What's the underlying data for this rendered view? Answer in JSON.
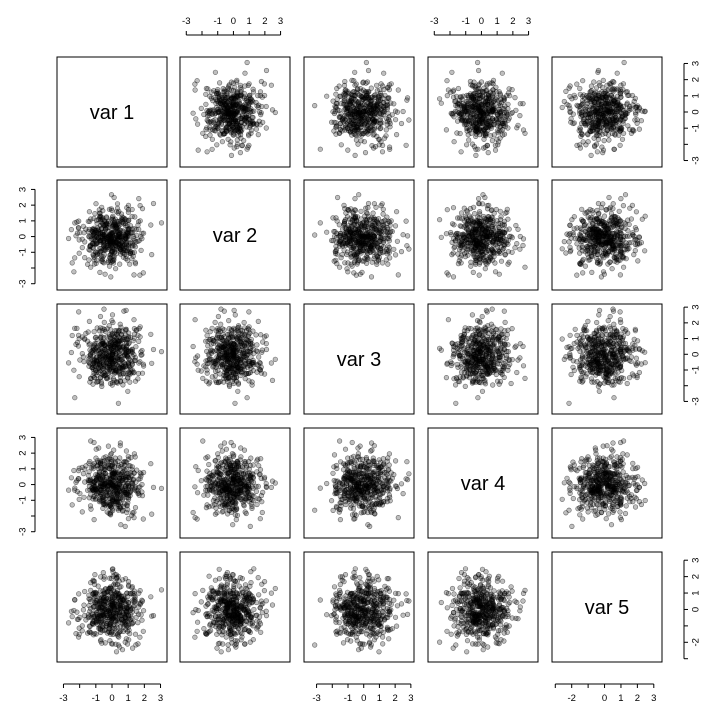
{
  "chart_data": {
    "type": "scatter",
    "title": "",
    "layout": "pairs-matrix",
    "variables": [
      "var 1",
      "var 2",
      "var 3",
      "var 4",
      "var 5"
    ],
    "distribution": "independent standard normal",
    "n_points": 500,
    "point_color": "#000000",
    "point_alpha": 0.25,
    "axes": {
      "var 1": {
        "range": [
          -3.4,
          3.4
        ],
        "ticks": [
          -3,
          -2,
          -1,
          0,
          1,
          2,
          3
        ],
        "tick_labels": [
          "-3",
          "",
          "-1",
          "0",
          "1",
          "2",
          "3"
        ]
      },
      "var 2": {
        "range": [
          -3.4,
          3.6
        ],
        "ticks": [
          -3,
          -2,
          -1,
          0,
          1,
          2,
          3
        ],
        "tick_labels": [
          "-3",
          "",
          "-1",
          "0",
          "1",
          "2",
          "3"
        ]
      },
      "var 3": {
        "range": [
          -3.8,
          3.2
        ],
        "ticks": [
          -3,
          -2,
          -1,
          0,
          1,
          2,
          3
        ],
        "tick_labels": [
          "-3",
          "",
          "-1",
          "0",
          "1",
          "2",
          "3"
        ]
      },
      "var 4": {
        "range": [
          -3.4,
          3.6
        ],
        "ticks": [
          -3,
          -2,
          -1,
          0,
          1,
          2,
          3
        ],
        "tick_labels": [
          "-3",
          "",
          "-1",
          "0",
          "1",
          "2",
          "3"
        ]
      },
      "var 5": {
        "range": [
          -3.2,
          3.5
        ],
        "ticks": [
          -3,
          -2,
          -1,
          0,
          1,
          2,
          3
        ],
        "tick_labels": [
          "",
          "-2",
          "",
          "0",
          "1",
          "2",
          "3"
        ]
      }
    },
    "grid": false,
    "legend": "none"
  }
}
